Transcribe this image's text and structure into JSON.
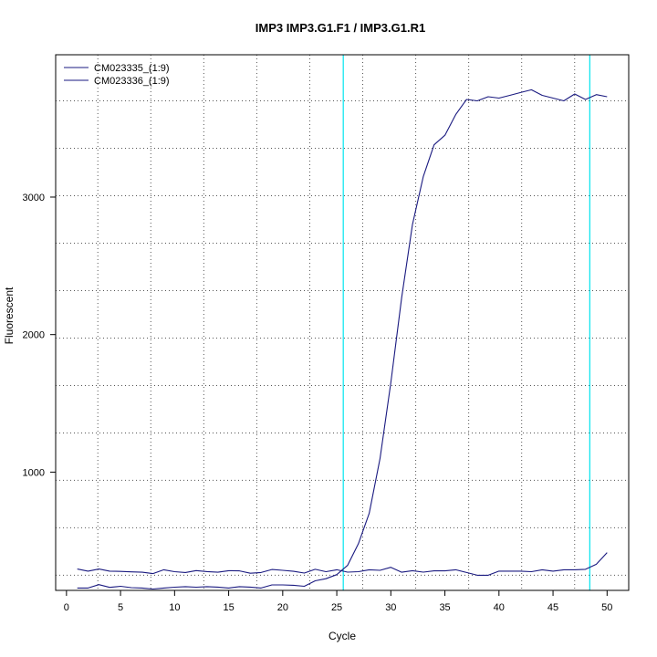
{
  "chart_data": {
    "type": "line",
    "title": "IMP3  IMP3.G1.F1 / IMP3.G1.R1",
    "xlabel": "Cycle",
    "ylabel": "Fluorescent",
    "xlim": [
      -1,
      52
    ],
    "ylim": [
      140,
      4035
    ],
    "x_ticks": [
      0,
      5,
      10,
      15,
      20,
      25,
      30,
      35,
      40,
      45,
      50
    ],
    "y_ticks": [
      1000,
      2000,
      3000
    ],
    "grid": "dotted",
    "grid_x": [
      2.9,
      7.8,
      12.7,
      17.6,
      22.5,
      27.4,
      32.3,
      37.2,
      42.1,
      47.0
    ],
    "grid_y": [
      250,
      595,
      940,
      1285,
      1630,
      1975,
      2320,
      2665,
      3010,
      3355,
      3700
    ],
    "legend_position": "top-left",
    "vertical_markers": {
      "color": "#00e5ee",
      "x": [
        25.6,
        48.4
      ]
    },
    "series_color": "#1a1a80",
    "x": [
      1,
      2,
      3,
      4,
      5,
      6,
      7,
      8,
      9,
      10,
      11,
      12,
      13,
      14,
      15,
      16,
      17,
      18,
      19,
      20,
      21,
      22,
      23,
      24,
      25,
      26,
      27,
      28,
      29,
      30,
      31,
      32,
      33,
      34,
      35,
      36,
      37,
      38,
      39,
      40,
      41,
      42,
      43,
      44,
      45,
      46,
      47,
      48,
      49,
      50
    ],
    "series": [
      {
        "name": "CM023335_(1:9)",
        "values": [
          157,
          157,
          182,
          162,
          170,
          160,
          157,
          150,
          157,
          163,
          167,
          163,
          167,
          164,
          157,
          167,
          164,
          157,
          180,
          180,
          177,
          170,
          210,
          225,
          255,
          322,
          480,
          700,
          1100,
          1650,
          2270,
          2800,
          3150,
          3380,
          3450,
          3600,
          3710,
          3700,
          3730,
          3720,
          3740,
          3760,
          3780,
          3740,
          3720,
          3700,
          3750,
          3710,
          3745,
          3730
        ]
      },
      {
        "name": "CM023336_(1:9)",
        "values": [
          295,
          280,
          295,
          280,
          278,
          275,
          272,
          262,
          290,
          276,
          270,
          284,
          277,
          272,
          283,
          282,
          265,
          270,
          292,
          286,
          279,
          266,
          293,
          276,
          290,
          273,
          276,
          290,
          286,
          308,
          272,
          283,
          273,
          282,
          282,
          290,
          270,
          250,
          250,
          280,
          280,
          280,
          276,
          290,
          280,
          290,
          290,
          293,
          330,
          415
        ]
      }
    ]
  }
}
